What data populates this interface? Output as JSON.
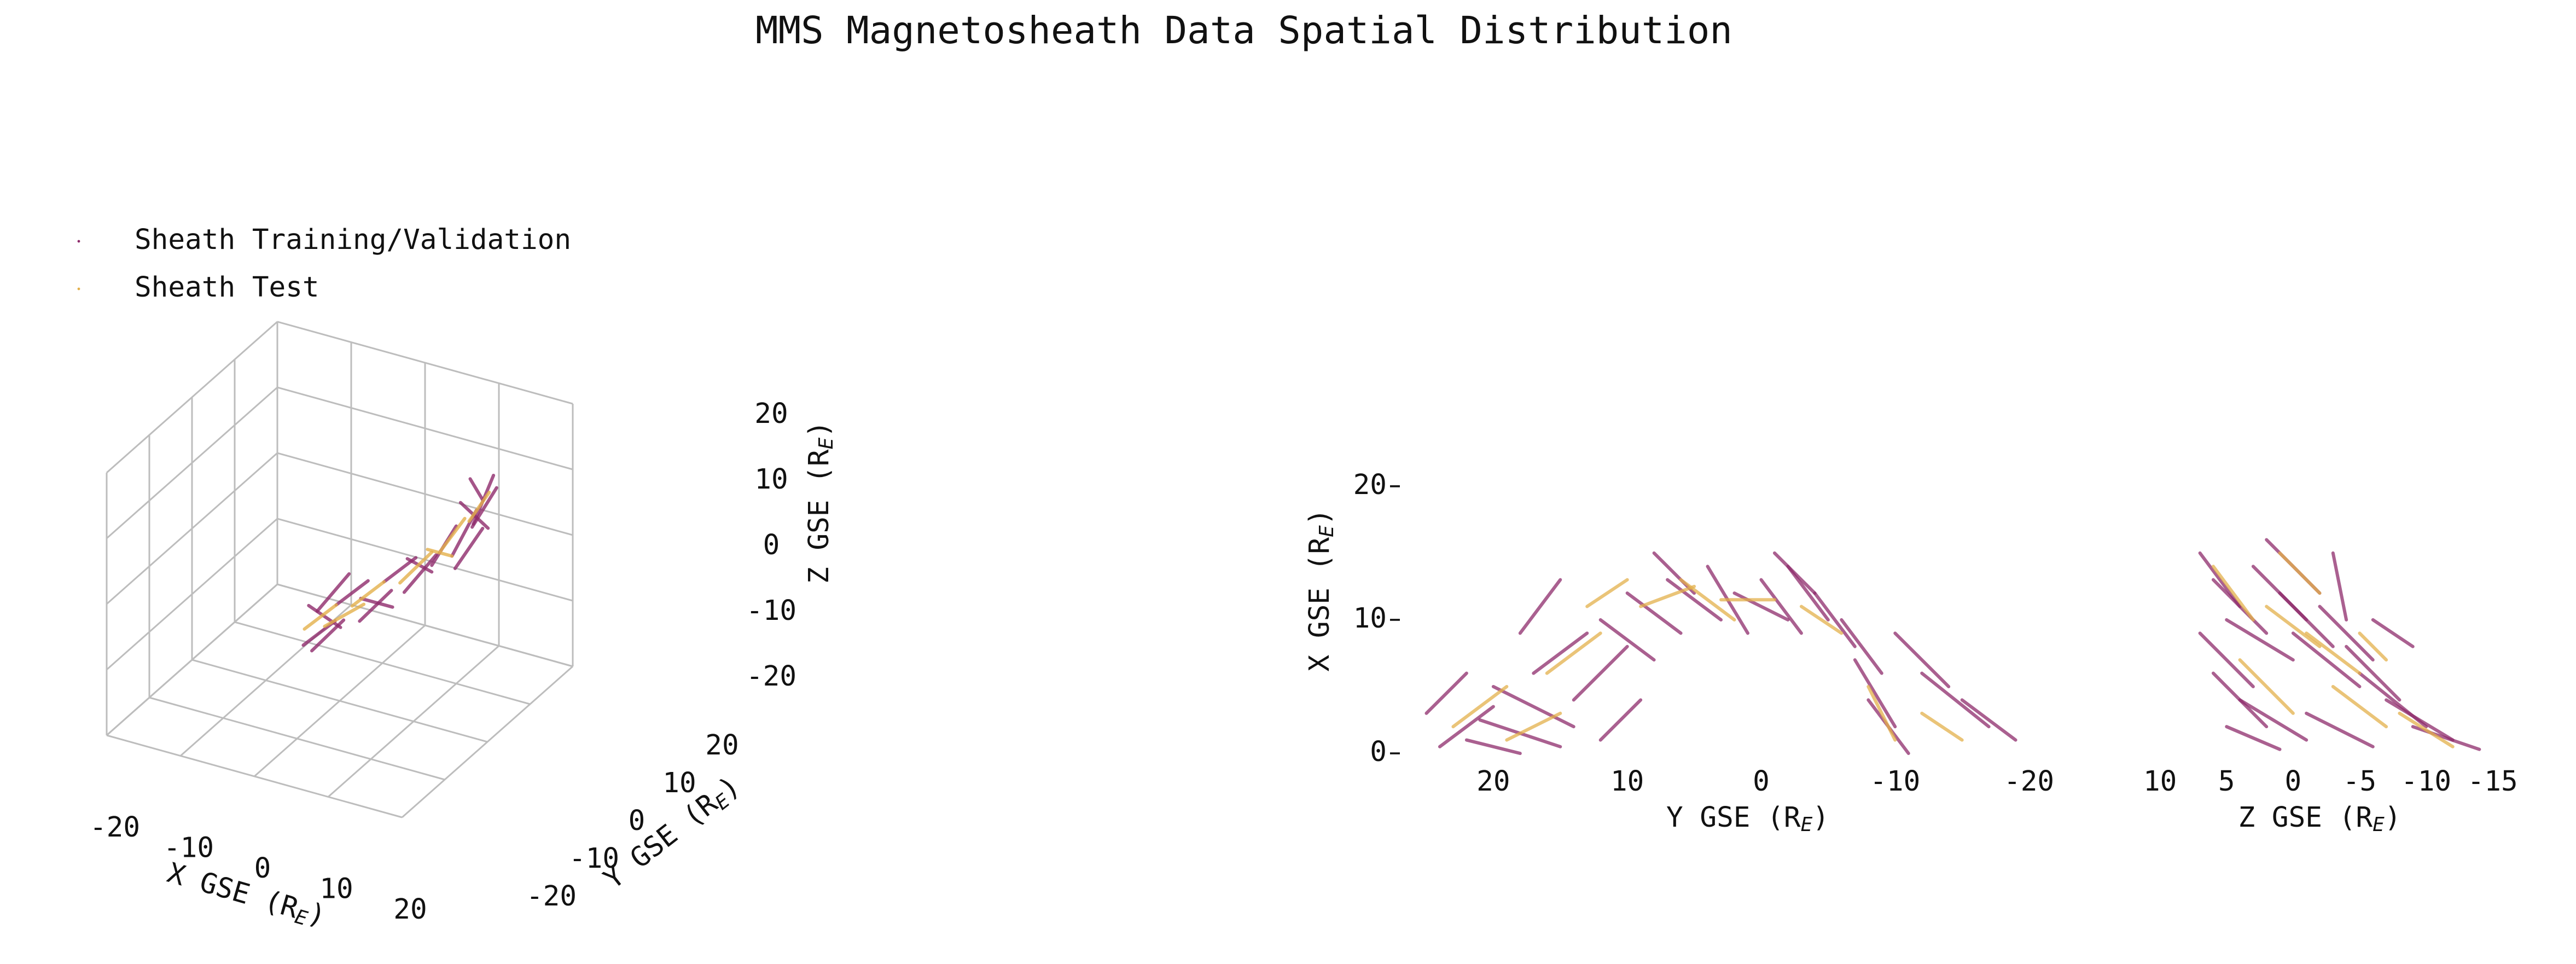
{
  "title": "MMS Magnetosheath Data Spatial Distribution",
  "chart_data": [
    {
      "type": "line3d",
      "xlabel": "X GSE (R_E)",
      "ylabel": "Y GSE (R_E)",
      "zlabel": "Z GSE (R_E)",
      "xlim": [
        -20,
        20
      ],
      "ylim": [
        -20,
        20
      ],
      "zlim": [
        -20,
        20
      ],
      "xticks": [
        -20,
        -10,
        0,
        10,
        20
      ],
      "yticks": [
        -20,
        -10,
        0,
        10,
        20
      ],
      "zticks": [
        -20,
        -10,
        0,
        10,
        20
      ],
      "grid": true,
      "legend": "upper left",
      "series": [
        {
          "name": "Sheath Training/Validation",
          "color": "#8e2b6b",
          "x": [
            2,
            4,
            null,
            2,
            4,
            null,
            3,
            5,
            null,
            5,
            7,
            null,
            6,
            8,
            null,
            7,
            9,
            null,
            9,
            10,
            null,
            10,
            11,
            null,
            11,
            12,
            null,
            10,
            11,
            null,
            1,
            3,
            null,
            4,
            6,
            null,
            8,
            9,
            null,
            10,
            12,
            null,
            9,
            9,
            null,
            3,
            1,
            null,
            11,
            13
          ],
          "y": [
            -12,
            -8,
            null,
            -10,
            -6,
            null,
            -6,
            -2,
            null,
            -4,
            0,
            null,
            0,
            4,
            null,
            3,
            7,
            null,
            6,
            10,
            null,
            9,
            13,
            null,
            12,
            16,
            null,
            14,
            17,
            null,
            -9,
            -5,
            null,
            -2,
            2,
            null,
            2,
            6,
            null,
            11,
            14,
            null,
            15,
            18,
            null,
            -3,
            -7,
            null,
            8,
            11
          ],
          "z": [
            -4,
            -2,
            null,
            -6,
            -3,
            null,
            -1,
            1,
            null,
            -4,
            -1,
            null,
            0,
            2,
            null,
            -3,
            1,
            null,
            0,
            4,
            null,
            0,
            5,
            null,
            3,
            7,
            null,
            2,
            8,
            null,
            0,
            -5,
            null,
            -2,
            -5,
            null,
            3,
            -1,
            null,
            7,
            2,
            null,
            8,
            3,
            null,
            2,
            -2,
            null,
            -1,
            4
          ]
        },
        {
          "name": "Sheath Test",
          "color": "#e3b04b",
          "x": [
            1,
            3,
            null,
            4,
            6,
            null,
            7,
            9,
            null,
            9,
            10,
            null,
            10,
            11,
            null,
            2,
            5,
            null,
            9,
            10
          ],
          "y": [
            -10,
            -6,
            null,
            -4,
            0,
            null,
            2,
            6,
            null,
            8,
            12,
            null,
            13,
            16,
            null,
            -7,
            -3,
            null,
            5,
            9
          ],
          "z": [
            -3,
            -1,
            null,
            -2,
            0,
            null,
            -1,
            2,
            null,
            1,
            4,
            null,
            3,
            6,
            null,
            -4,
            -2,
            null,
            3,
            0
          ]
        }
      ]
    },
    {
      "type": "line",
      "xlabel": "Y GSE (R_E)",
      "ylabel": "X GSE (R_E)",
      "xlim": [
        26,
        -24
      ],
      "ylim": [
        0,
        22
      ],
      "xticks": [
        20,
        10,
        0,
        -10,
        -20
      ],
      "yticks": [
        0,
        10,
        20
      ],
      "series": [
        {
          "name": "Sheath Training/Validation",
          "color": "#8e2b6b",
          "x": [
            24,
            20,
            null,
            22,
            18,
            null,
            20,
            14,
            null,
            17,
            13,
            null,
            14,
            10,
            null,
            12,
            8,
            null,
            10,
            6,
            null,
            7,
            3,
            null,
            4,
            1,
            null,
            2,
            -2,
            null,
            0,
            -3,
            null,
            -2,
            -5,
            null,
            -4,
            -7,
            null,
            -6,
            -9,
            null,
            -7,
            -10,
            null,
            -8,
            -11,
            null,
            -10,
            -14,
            null,
            -12,
            -17,
            null,
            -15,
            -19,
            null,
            25,
            22,
            null,
            18,
            15,
            null,
            8,
            5,
            null,
            -1,
            -4,
            null,
            21,
            15,
            null,
            12,
            9
          ],
          "values": [
            0.5,
            3.5,
            null,
            1,
            0,
            null,
            5,
            2,
            null,
            6,
            9,
            null,
            4,
            8,
            null,
            10,
            7,
            null,
            12,
            9,
            null,
            13,
            10,
            null,
            14,
            9,
            null,
            12,
            10,
            null,
            13,
            9,
            null,
            14,
            10,
            null,
            12,
            8,
            null,
            10,
            6,
            null,
            7,
            2,
            null,
            4,
            0,
            null,
            9,
            5,
            null,
            6,
            2,
            null,
            4,
            1,
            null,
            3,
            6,
            null,
            9,
            13,
            null,
            15,
            12,
            null,
            15,
            12,
            null,
            2.5,
            0.5,
            null,
            1,
            4
          ]
        },
        {
          "name": "Sheath Test",
          "color": "#e3b04b",
          "x": [
            23,
            19,
            null,
            16,
            12,
            null,
            9,
            5,
            null,
            3,
            -1,
            null,
            -3,
            -6,
            null,
            -8,
            -10,
            null,
            19,
            15,
            null,
            6,
            2,
            null,
            -12,
            -15,
            null,
            13,
            10
          ],
          "values": [
            2,
            5,
            null,
            6,
            9,
            null,
            11,
            12.5,
            null,
            11.5,
            11.5,
            null,
            11,
            9,
            null,
            5,
            1,
            null,
            1,
            3,
            null,
            13,
            10,
            null,
            3,
            1,
            null,
            11,
            13
          ]
        }
      ]
    },
    {
      "type": "line",
      "xlabel": "Z GSE (R_E)",
      "xlim": [
        12,
        -16
      ],
      "ylim": [
        0,
        22
      ],
      "xticks": [
        10,
        5,
        0,
        -5,
        -10,
        -15
      ],
      "series": [
        {
          "name": "Sheath Training/Validation",
          "color": "#8e2b6b",
          "x": [
            7,
            4,
            null,
            6,
            2,
            null,
            5,
            0,
            null,
            3,
            -1,
            null,
            1,
            -3,
            null,
            0,
            -5,
            null,
            -2,
            -6,
            null,
            -4,
            -8,
            null,
            6,
            2,
            null,
            4,
            -1,
            null,
            -1,
            -6,
            null,
            -5,
            -10,
            null,
            -7,
            -12,
            null,
            -9,
            -14,
            null,
            7,
            3,
            null,
            -3,
            -4,
            null,
            2,
            -2,
            null,
            -6,
            -9,
            null,
            5,
            1
          ],
          "values": [
            15,
            11,
            null,
            13,
            9,
            null,
            10,
            7,
            null,
            14,
            10,
            null,
            12,
            8,
            null,
            9,
            5,
            null,
            11,
            7,
            null,
            8,
            4,
            null,
            6,
            2,
            null,
            4,
            1,
            null,
            3,
            0.5,
            null,
            6,
            2,
            null,
            4,
            1,
            null,
            2,
            0.3,
            null,
            9,
            5,
            null,
            15,
            10,
            null,
            16,
            12,
            null,
            10,
            8,
            null,
            2,
            0.3
          ]
        },
        {
          "name": "Sheath Test",
          "color": "#e3b04b",
          "x": [
            6,
            3,
            null,
            2,
            -2,
            null,
            -1,
            -5,
            null,
            4,
            0,
            null,
            -3,
            -7,
            null,
            -8,
            -12,
            null,
            1,
            -2,
            null,
            -5,
            -7
          ],
          "values": [
            14,
            10,
            null,
            11,
            8,
            null,
            9,
            6,
            null,
            7,
            3,
            null,
            5,
            2,
            null,
            3,
            0.5,
            null,
            15,
            12,
            null,
            9,
            7
          ]
        }
      ]
    }
  ]
}
